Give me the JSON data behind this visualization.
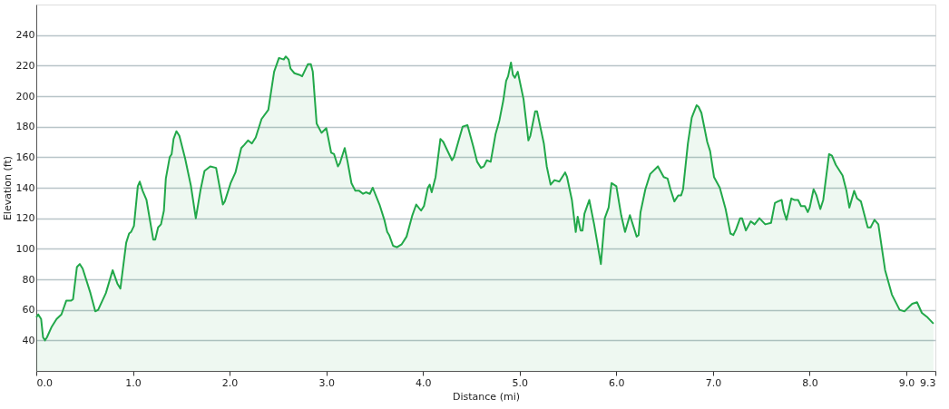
{
  "chart_data": {
    "type": "area",
    "xlabel": "Distance  (mi)",
    "ylabel": "Elevation (ft)",
    "xlim": [
      0,
      9.3
    ],
    "ylim": [
      20,
      260
    ],
    "xticks": [
      {
        "value": 0,
        "label": "0.0"
      },
      {
        "value": 1,
        "label": "1.0"
      },
      {
        "value": 2,
        "label": "2.0"
      },
      {
        "value": 3,
        "label": "3.0"
      },
      {
        "value": 4,
        "label": "4.0"
      },
      {
        "value": 5,
        "label": "5.0"
      },
      {
        "value": 6,
        "label": "6.0"
      },
      {
        "value": 7,
        "label": "7.0"
      },
      {
        "value": 8,
        "label": "8.0"
      },
      {
        "value": 9,
        "label": "9.0"
      },
      9.3
    ],
    "yticks": [
      40,
      60,
      80,
      100,
      120,
      140,
      160,
      180,
      200,
      220,
      240
    ],
    "grid": "y",
    "series": [
      {
        "color": "#22a84a",
        "x": [
          0.0,
          0.02,
          0.05,
          0.07,
          0.09,
          0.11,
          0.16,
          0.21,
          0.26,
          0.31,
          0.36,
          0.38,
          0.42,
          0.45,
          0.48,
          0.56,
          0.61,
          0.64,
          0.72,
          0.79,
          0.84,
          0.87,
          0.93,
          0.96,
          0.98,
          1.01,
          1.05,
          1.07,
          1.1,
          1.14,
          1.21,
          1.23,
          1.26,
          1.29,
          1.32,
          1.34,
          1.38,
          1.4,
          1.42,
          1.45,
          1.48,
          1.54,
          1.6,
          1.65,
          1.7,
          1.74,
          1.8,
          1.86,
          1.93,
          1.95,
          2.01,
          2.06,
          2.12,
          2.15,
          2.19,
          2.23,
          2.27,
          2.33,
          2.4,
          2.46,
          2.51,
          2.56,
          2.58,
          2.61,
          2.63,
          2.67,
          2.72,
          2.75,
          2.81,
          2.84,
          2.86,
          2.9,
          2.95,
          3.0,
          3.05,
          3.08,
          3.12,
          3.14,
          3.19,
          3.22,
          3.26,
          3.3,
          3.34,
          3.38,
          3.41,
          3.45,
          3.48,
          3.55,
          3.6,
          3.63,
          3.65,
          3.69,
          3.73,
          3.78,
          3.83,
          3.89,
          3.93,
          3.98,
          4.01,
          4.05,
          4.07,
          4.09,
          4.13,
          4.18,
          4.21,
          4.27,
          4.3,
          4.32,
          4.36,
          4.41,
          4.46,
          4.52,
          4.56,
          4.6,
          4.63,
          4.66,
          4.7,
          4.75,
          4.79,
          4.83,
          4.86,
          4.88,
          4.91,
          4.93,
          4.95,
          4.98,
          5.04,
          5.09,
          5.11,
          5.16,
          5.18,
          5.25,
          5.28,
          5.32,
          5.36,
          5.41,
          5.47,
          5.49,
          5.54,
          5.58,
          5.6,
          5.63,
          5.65,
          5.67,
          5.72,
          5.77,
          5.8,
          5.84,
          5.88,
          5.92,
          5.95,
          6.0,
          6.05,
          6.09,
          6.14,
          6.21,
          6.23,
          6.25,
          6.3,
          6.35,
          6.43,
          6.49,
          6.53,
          6.56,
          6.6,
          6.64,
          6.67,
          6.69,
          6.74,
          6.78,
          6.83,
          6.85,
          6.88,
          6.94,
          6.97,
          7.01,
          7.07,
          7.13,
          7.18,
          7.21,
          7.24,
          7.28,
          7.3,
          7.34,
          7.39,
          7.43,
          7.48,
          7.54,
          7.6,
          7.64,
          7.67,
          7.71,
          7.73,
          7.76,
          7.81,
          7.84,
          7.88,
          7.91,
          7.95,
          7.98,
          8.0,
          8.04,
          8.07,
          8.11,
          8.14,
          8.2,
          8.23,
          8.27,
          8.34,
          8.38,
          8.41,
          8.46,
          8.49,
          8.53,
          8.6,
          8.63,
          8.67,
          8.71,
          8.78,
          8.85,
          8.93,
          8.98,
          9.06,
          9.11,
          9.16,
          9.22,
          9.28
        ],
        "values": [
          55,
          57,
          54,
          42,
          40,
          42,
          49,
          54,
          57,
          66,
          66,
          67,
          88,
          90,
          87,
          71,
          59,
          60,
          71,
          86,
          77,
          74,
          104,
          110,
          111,
          115,
          141,
          144,
          138,
          132,
          106,
          106,
          114,
          116,
          125,
          146,
          160,
          162,
          172,
          177,
          174,
          159,
          141,
          120,
          139,
          151,
          154,
          153,
          129,
          131,
          143,
          150,
          166,
          168,
          171,
          169,
          173,
          185,
          191,
          216,
          225,
          224,
          226,
          224,
          218,
          215,
          214,
          213,
          221,
          221,
          216,
          182,
          176,
          179,
          163,
          162,
          154,
          156,
          166,
          157,
          143,
          138,
          138,
          136,
          137,
          136,
          140,
          129,
          119,
          111,
          109,
          102,
          101,
          103,
          108,
          122,
          129,
          125,
          128,
          140,
          142,
          137,
          147,
          172,
          170,
          162,
          158,
          160,
          169,
          180,
          181,
          167,
          157,
          153,
          154,
          158,
          157,
          175,
          184,
          197,
          210,
          213,
          222,
          214,
          212,
          216,
          198,
          171,
          174,
          190,
          190,
          169,
          154,
          142,
          145,
          144,
          150,
          147,
          132,
          111,
          121,
          112,
          112,
          123,
          132,
          116,
          105,
          90,
          120,
          127,
          143,
          141,
          122,
          111,
          122,
          108,
          109,
          124,
          139,
          149,
          154,
          147,
          146,
          139,
          131,
          135,
          135,
          139,
          169,
          186,
          194,
          193,
          189,
          170,
          164,
          147,
          140,
          126,
          110,
          109,
          113,
          120,
          120,
          112,
          118,
          116,
          120,
          116,
          117,
          130,
          131,
          132,
          125,
          119,
          133,
          132,
          132,
          128,
          128,
          124,
          127,
          139,
          135,
          126,
          132,
          162,
          161,
          155,
          148,
          138,
          127,
          138,
          133,
          131,
          114,
          114,
          119,
          116,
          86,
          70,
          60,
          59,
          64,
          65,
          58,
          55,
          51
        ]
      }
    ]
  }
}
